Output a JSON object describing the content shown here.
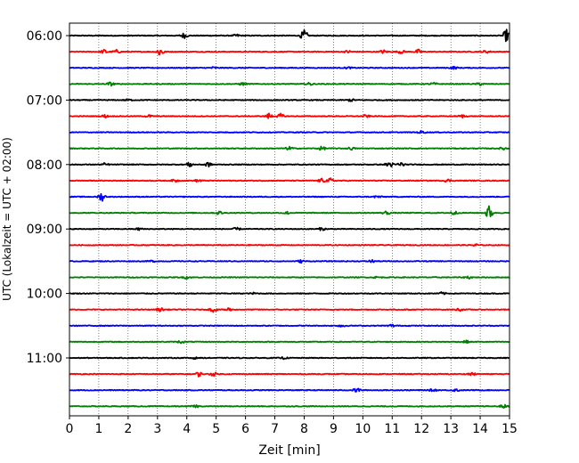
{
  "chart_data": {
    "type": "line",
    "subtype": "helicorder",
    "xlabel": "Zeit  [min]",
    "ylabel": "UTC (Lokalzeit = UTC + 02:00)",
    "xlim": [
      0,
      15
    ],
    "x_ticks": [
      "0",
      "1",
      "2",
      "3",
      "4",
      "5",
      "6",
      "7",
      "8",
      "9",
      "10",
      "11",
      "12",
      "13",
      "14",
      "15"
    ],
    "y_tick_labels": [
      "06:00",
      "07:00",
      "08:00",
      "09:00",
      "10:00",
      "11:00"
    ],
    "y_tick_rows": [
      0,
      4,
      8,
      12,
      16,
      20
    ],
    "row_minutes": 15,
    "row_start_times": [
      "06:00",
      "06:15",
      "06:30",
      "06:45",
      "07:00",
      "07:15",
      "07:30",
      "07:45",
      "08:00",
      "08:15",
      "08:30",
      "08:45",
      "09:00",
      "09:15",
      "09:30",
      "09:45",
      "10:00",
      "10:15",
      "10:30",
      "10:45",
      "11:00",
      "11:15",
      "11:30",
      "11:45"
    ],
    "trace_colors": [
      "#000000",
      "#ff0000",
      "#0000ff",
      "#008000"
    ],
    "grid": "vertical dotted lines at each minute",
    "events": [
      [
        [
          3.9,
          0.6
        ],
        [
          5.7,
          0.3
        ],
        [
          8.0,
          1.2
        ],
        [
          14.9,
          1.4
        ]
      ],
      [
        [
          1.2,
          0.5
        ],
        [
          1.6,
          0.4
        ],
        [
          3.1,
          1.3
        ],
        [
          9.5,
          0.3
        ],
        [
          10.7,
          0.4
        ],
        [
          11.3,
          0.4
        ],
        [
          11.9,
          0.5
        ],
        [
          14.2,
          0.3
        ]
      ],
      [
        [
          4.9,
          0.2
        ],
        [
          9.5,
          0.2
        ],
        [
          13.1,
          0.3
        ]
      ],
      [
        [
          1.4,
          0.4
        ],
        [
          5.9,
          0.3
        ],
        [
          8.2,
          0.3
        ],
        [
          12.4,
          0.3
        ],
        [
          14.0,
          0.3
        ]
      ],
      [
        [
          2.0,
          0.2
        ],
        [
          9.6,
          0.3
        ]
      ],
      [
        [
          1.2,
          0.3
        ],
        [
          2.7,
          0.3
        ],
        [
          6.8,
          0.6
        ],
        [
          7.2,
          0.5
        ],
        [
          10.1,
          0.3
        ],
        [
          13.4,
          0.3
        ]
      ],
      [
        [
          12.0,
          0.3
        ]
      ],
      [
        [
          7.5,
          0.4
        ],
        [
          8.6,
          0.4
        ],
        [
          9.6,
          0.3
        ],
        [
          14.8,
          0.3
        ]
      ],
      [
        [
          1.2,
          0.3
        ],
        [
          4.1,
          0.5
        ],
        [
          4.7,
          0.6
        ],
        [
          10.9,
          0.8
        ],
        [
          11.3,
          0.5
        ]
      ],
      [
        [
          3.6,
          0.3
        ],
        [
          4.4,
          0.3
        ],
        [
          8.6,
          0.4
        ],
        [
          8.9,
          0.5
        ],
        [
          12.9,
          0.3
        ]
      ],
      [
        [
          1.1,
          1.0
        ],
        [
          10.5,
          0.3
        ]
      ],
      [
        [
          5.1,
          0.4
        ],
        [
          7.4,
          0.3
        ],
        [
          10.8,
          0.4
        ],
        [
          13.1,
          0.5
        ],
        [
          14.3,
          1.6
        ]
      ],
      [
        [
          2.4,
          0.3
        ],
        [
          5.7,
          0.3
        ],
        [
          8.6,
          0.3
        ]
      ],
      [
        [
          13.8,
          0.4
        ]
      ],
      [
        [
          2.8,
          0.2
        ],
        [
          7.9,
          0.3
        ],
        [
          10.3,
          0.3
        ]
      ],
      [
        [
          4.0,
          0.3
        ],
        [
          10.5,
          0.2
        ],
        [
          13.6,
          0.3
        ]
      ],
      [
        [
          6.3,
          0.2
        ],
        [
          12.7,
          0.3
        ]
      ],
      [
        [
          3.1,
          0.4
        ],
        [
          4.9,
          0.5
        ],
        [
          5.4,
          0.5
        ],
        [
          13.3,
          0.3
        ]
      ],
      [
        [
          9.3,
          0.4
        ],
        [
          11.0,
          0.3
        ]
      ],
      [
        [
          3.8,
          0.3
        ],
        [
          13.5,
          0.3
        ]
      ],
      [
        [
          4.2,
          0.3
        ],
        [
          7.3,
          0.2
        ]
      ],
      [
        [
          4.4,
          0.5
        ],
        [
          4.9,
          0.4
        ],
        [
          13.7,
          0.4
        ]
      ],
      [
        [
          9.8,
          0.5
        ],
        [
          12.4,
          0.3
        ],
        [
          13.2,
          0.3
        ]
      ],
      [
        [
          4.3,
          0.3
        ],
        [
          14.8,
          0.4
        ]
      ]
    ]
  }
}
